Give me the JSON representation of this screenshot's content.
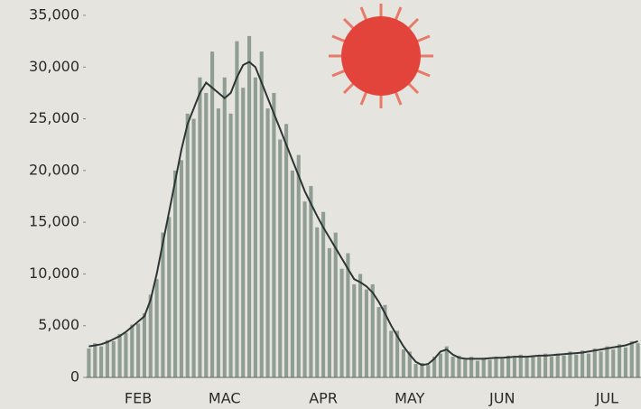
{
  "chart_data": {
    "type": "bar",
    "categories": [
      null,
      null,
      null,
      null,
      null,
      null,
      null,
      null,
      "FEB",
      null,
      null,
      null,
      null,
      null,
      null,
      null,
      null,
      null,
      null,
      null,
      null,
      null,
      "MAC",
      null,
      null,
      null,
      null,
      null,
      null,
      null,
      null,
      null,
      null,
      null,
      null,
      null,
      null,
      null,
      "APR",
      null,
      null,
      null,
      null,
      null,
      null,
      null,
      null,
      null,
      null,
      null,
      null,
      null,
      "MAY",
      null,
      null,
      null,
      null,
      null,
      null,
      null,
      null,
      null,
      null,
      null,
      null,
      null,
      null,
      "JUN",
      null,
      null,
      null,
      null,
      null,
      null,
      null,
      null,
      null,
      null,
      null,
      null,
      null,
      null,
      null,
      null,
      "JUL",
      null,
      null,
      null,
      null,
      null
    ],
    "series": [
      {
        "type": "bar",
        "color": "#8f9d92",
        "values": [
          2800,
          3300,
          3000,
          3600,
          3500,
          4200,
          4300,
          5100,
          5200,
          6200,
          8000,
          9500,
          14000,
          15500,
          20000,
          21000,
          25500,
          25000,
          29000,
          27500,
          31500,
          26000,
          29000,
          25500,
          32500,
          28000,
          33000,
          29000,
          31500,
          26000,
          27500,
          23000,
          24500,
          20000,
          21500,
          17000,
          18500,
          14500,
          16000,
          12500,
          14000,
          10500,
          12000,
          9000,
          10000,
          8500,
          9000,
          6800,
          7000,
          4500,
          4500,
          2700,
          2500,
          1300,
          1400,
          1200,
          2000,
          2300,
          3000,
          2000,
          2100,
          1700,
          2000,
          1600,
          1900,
          1700,
          2000,
          1800,
          2100,
          1900,
          2200,
          1900,
          2100,
          2000,
          2300,
          2000,
          2300,
          2100,
          2500,
          2200,
          2600,
          2300,
          2800,
          2500,
          3000,
          2700,
          3200,
          2900,
          3500,
          3300
        ]
      },
      {
        "type": "line",
        "color": "#2c3636",
        "values": [
          3000,
          3100,
          3200,
          3400,
          3700,
          4000,
          4400,
          4900,
          5400,
          5900,
          7500,
          10000,
          13000,
          16000,
          19000,
          22000,
          24500,
          26000,
          27500,
          28500,
          28000,
          27500,
          27000,
          27500,
          29000,
          30200,
          30500,
          30000,
          28500,
          27000,
          25500,
          24000,
          22500,
          21000,
          19500,
          18000,
          16800,
          15600,
          14500,
          13500,
          12500,
          11500,
          10500,
          9500,
          9200,
          8800,
          8200,
          7300,
          6200,
          5000,
          4000,
          3000,
          2200,
          1500,
          1200,
          1300,
          1800,
          2500,
          2700,
          2200,
          1900,
          1800,
          1800,
          1800,
          1800,
          1850,
          1900,
          1900,
          1950,
          2000,
          2000,
          2000,
          2050,
          2100,
          2100,
          2150,
          2200,
          2250,
          2300,
          2350,
          2400,
          2500,
          2600,
          2700,
          2800,
          2900,
          3000,
          3100,
          3300,
          3500
        ]
      }
    ],
    "ylim": [
      0,
      35000
    ],
    "yticks": [
      0,
      {
        "value": 5000,
        "label": "5,000"
      },
      {
        "value": 10000,
        "label": "10,000"
      },
      {
        "value": 15000,
        "label": "15,000"
      },
      {
        "value": 20000,
        "label": "20,000"
      },
      {
        "value": 25000,
        "label": "25,000"
      },
      {
        "value": 30000,
        "label": "30,000"
      },
      {
        "value": 35000,
        "label": "35,000"
      }
    ],
    "grid": false
  }
}
